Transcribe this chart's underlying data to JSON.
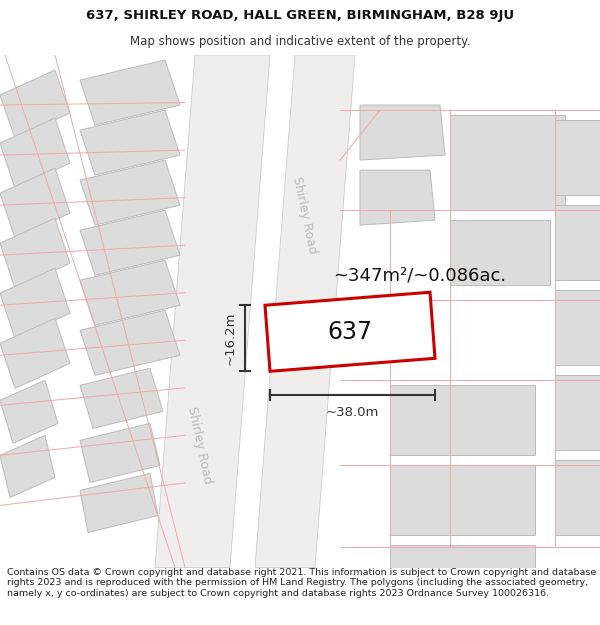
{
  "title_line1": "637, SHIRLEY ROAD, HALL GREEN, BIRMINGHAM, B28 9JU",
  "title_line2": "Map shows position and indicative extent of the property.",
  "area_label": "~347m²/~0.086ac.",
  "property_number": "637",
  "width_label": "~38.0m",
  "height_label": "~16.2m",
  "footer_text": "Contains OS data © Crown copyright and database right 2021. This information is subject to Crown copyright and database rights 2023 and is reproduced with the permission of HM Land Registry. The polygons (including the associated geometry, namely x, y co-ordinates) are subject to Crown copyright and database rights 2023 Ordnance Survey 100026316.",
  "bg_color": "#ffffff",
  "map_bg": "#f9f7f5",
  "road_fill": "#f0eeed",
  "road_edge": "#cccccc",
  "building_fill": "#dcdcdc",
  "building_edge": "#bbbbbb",
  "plot_line_color": "#f0a8a8",
  "property_fill": "#ffffff",
  "property_edge": "#cc0000",
  "road_label_color": "#bbbbbb",
  "measure_color": "#333333",
  "title_fontsize": 9.5,
  "subtitle_fontsize": 8.5,
  "footer_fontsize": 6.8,
  "area_fontsize": 13,
  "number_fontsize": 17,
  "measure_fontsize": 9.5,
  "road_label_fontsize": 9
}
